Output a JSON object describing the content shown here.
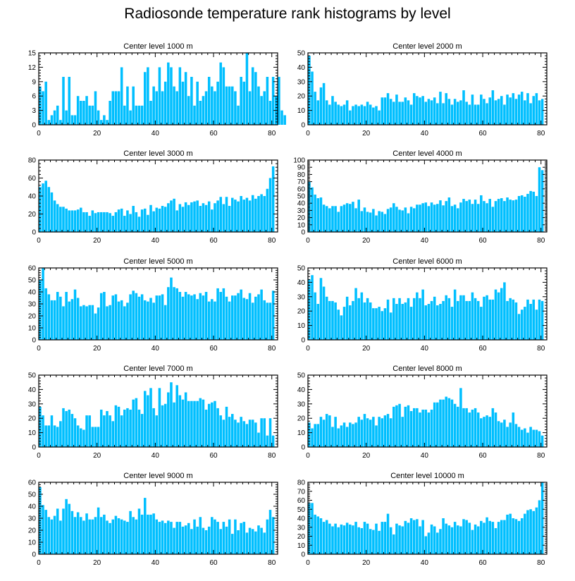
{
  "title": "Radiosonde temperature rank histograms by level",
  "colors": {
    "bar": "#00BFFF",
    "bar_stroke": "#ffffff",
    "axis": "#000000"
  },
  "chart_data": [
    {
      "type": "bar",
      "title": "Center level 1000 m",
      "xlim": [
        0,
        82
      ],
      "ylim": [
        0,
        15
      ],
      "xticks": [
        0,
        20,
        40,
        60,
        80
      ],
      "yticks": [
        0,
        3,
        6,
        9,
        12,
        15
      ],
      "values": [
        8,
        7,
        9,
        1,
        2,
        3,
        4,
        1,
        10,
        3,
        10,
        2,
        2,
        6,
        5,
        5,
        6,
        4,
        4,
        7,
        3,
        1,
        2,
        1,
        5,
        7,
        7,
        7,
        12,
        4,
        8,
        3,
        8,
        4,
        4,
        4,
        11,
        12,
        5,
        8,
        7,
        12,
        7,
        9,
        13,
        12,
        8,
        7,
        12,
        9,
        11,
        6,
        10,
        4,
        9,
        5,
        6,
        7,
        10,
        8,
        7,
        9,
        13,
        12,
        8,
        8,
        8,
        7,
        4,
        10,
        9,
        15,
        7,
        12,
        11,
        8,
        6,
        7,
        10,
        5,
        10,
        6,
        10,
        3,
        2
      ],
      "xlabel": "",
      "ylabel": ""
    },
    {
      "type": "bar",
      "title": "Center level 2000 m",
      "xlim": [
        0,
        82
      ],
      "ylim": [
        0,
        50
      ],
      "xticks": [
        0,
        20,
        40,
        60,
        80
      ],
      "yticks": [
        0,
        10,
        20,
        30,
        40,
        50
      ],
      "values": [
        48,
        37,
        23,
        17,
        26,
        29,
        17,
        14,
        20,
        16,
        14,
        13,
        14,
        17,
        10,
        13,
        14,
        13,
        14,
        13,
        16,
        14,
        12,
        13,
        10,
        19,
        19,
        22,
        18,
        16,
        21,
        16,
        16,
        19,
        17,
        14,
        22,
        20,
        19,
        20,
        16,
        18,
        17,
        19,
        15,
        23,
        15,
        22,
        18,
        14,
        18,
        16,
        17,
        24,
        16,
        14,
        21,
        14,
        14,
        21,
        18,
        15,
        19,
        24,
        17,
        18,
        20,
        14,
        21,
        19,
        22,
        18,
        21,
        23,
        17,
        22,
        15,
        20,
        22,
        17,
        18
      ],
      "xlabel": "",
      "ylabel": ""
    },
    {
      "type": "bar",
      "title": "Center level 3000 m",
      "xlim": [
        0,
        82
      ],
      "ylim": [
        0,
        80
      ],
      "xticks": [
        0,
        20,
        40,
        60,
        80
      ],
      "yticks": [
        0,
        20,
        40,
        60,
        80
      ],
      "values": [
        50,
        54,
        57,
        50,
        44,
        35,
        31,
        28,
        28,
        26,
        24,
        24,
        24,
        25,
        27,
        22,
        22,
        18,
        24,
        21,
        22,
        22,
        22,
        22,
        21,
        18,
        22,
        25,
        26,
        18,
        24,
        20,
        29,
        22,
        17,
        25,
        26,
        19,
        30,
        23,
        27,
        26,
        29,
        28,
        32,
        35,
        37,
        24,
        31,
        28,
        33,
        30,
        33,
        34,
        35,
        29,
        32,
        30,
        34,
        25,
        32,
        35,
        39,
        31,
        39,
        29,
        38,
        36,
        34,
        40,
        36,
        38,
        35,
        41,
        37,
        40,
        42,
        40,
        48,
        60,
        73
      ],
      "xlabel": "",
      "ylabel": ""
    },
    {
      "type": "bar",
      "title": "Center level 4000 m",
      "xlim": [
        0,
        82
      ],
      "ylim": [
        0,
        100
      ],
      "xticks": [
        0,
        20,
        40,
        60,
        80
      ],
      "yticks": [
        0,
        10,
        20,
        30,
        40,
        50,
        60,
        70,
        80,
        90,
        100
      ],
      "values": [
        70,
        62,
        52,
        47,
        48,
        38,
        36,
        33,
        36,
        36,
        28,
        36,
        38,
        40,
        39,
        42,
        33,
        45,
        29,
        34,
        28,
        27,
        32,
        23,
        29,
        28,
        25,
        32,
        34,
        40,
        35,
        31,
        30,
        34,
        26,
        35,
        33,
        38,
        38,
        40,
        41,
        36,
        41,
        38,
        39,
        44,
        37,
        43,
        48,
        36,
        38,
        33,
        41,
        46,
        43,
        45,
        39,
        45,
        39,
        51,
        43,
        40,
        46,
        35,
        43,
        46,
        47,
        43,
        48,
        45,
        44,
        45,
        50,
        51,
        49,
        53,
        57,
        56,
        50,
        90,
        86
      ],
      "xlabel": "",
      "ylabel": ""
    },
    {
      "type": "bar",
      "title": "Center level 5000 m",
      "xlim": [
        0,
        82
      ],
      "ylim": [
        0,
        60
      ],
      "xticks": [
        0,
        20,
        40,
        60,
        80
      ],
      "yticks": [
        0,
        10,
        20,
        30,
        40,
        50,
        60
      ],
      "values": [
        50,
        60,
        43,
        38,
        33,
        33,
        40,
        36,
        28,
        40,
        32,
        34,
        42,
        35,
        28,
        29,
        28,
        29,
        29,
        22,
        27,
        39,
        40,
        28,
        29,
        37,
        38,
        32,
        33,
        28,
        31,
        38,
        41,
        39,
        36,
        38,
        33,
        32,
        35,
        31,
        37,
        37,
        38,
        29,
        44,
        52,
        44,
        43,
        40,
        36,
        40,
        38,
        37,
        38,
        34,
        39,
        37,
        40,
        32,
        34,
        32,
        43,
        40,
        43,
        36,
        32,
        37,
        37,
        39,
        42,
        35,
        34,
        39,
        31,
        36,
        38,
        42,
        33,
        31,
        31,
        41
      ],
      "xlabel": "",
      "ylabel": ""
    },
    {
      "type": "bar",
      "title": "Center level 6000 m",
      "xlim": [
        0,
        82
      ],
      "ylim": [
        0,
        50
      ],
      "xticks": [
        0,
        20,
        40,
        60,
        80
      ],
      "yticks": [
        0,
        10,
        20,
        30,
        40,
        50
      ],
      "values": [
        42,
        45,
        33,
        25,
        43,
        37,
        30,
        27,
        27,
        26,
        21,
        17,
        23,
        30,
        24,
        27,
        36,
        29,
        33,
        26,
        29,
        26,
        22,
        22,
        23,
        20,
        22,
        28,
        19,
        29,
        25,
        29,
        25,
        26,
        29,
        23,
        29,
        33,
        29,
        35,
        24,
        25,
        27,
        30,
        24,
        25,
        27,
        31,
        29,
        23,
        35,
        27,
        31,
        31,
        27,
        27,
        33,
        29,
        27,
        23,
        30,
        31,
        28,
        28,
        35,
        33,
        36,
        40,
        27,
        29,
        28,
        26,
        18,
        21,
        23,
        28,
        25,
        28,
        21,
        28,
        27
      ],
      "xlabel": "",
      "ylabel": ""
    },
    {
      "type": "bar",
      "title": "Center level 7000 m",
      "xlim": [
        0,
        82
      ],
      "ylim": [
        0,
        50
      ],
      "xticks": [
        0,
        20,
        40,
        60,
        80
      ],
      "yticks": [
        0,
        10,
        20,
        30,
        40,
        50
      ],
      "values": [
        28,
        22,
        15,
        15,
        22,
        15,
        14,
        18,
        27,
        25,
        26,
        23,
        20,
        15,
        13,
        12,
        22,
        22,
        14,
        14,
        14,
        26,
        22,
        25,
        22,
        18,
        29,
        28,
        22,
        26,
        27,
        26,
        33,
        34,
        26,
        23,
        39,
        36,
        41,
        27,
        22,
        41,
        29,
        30,
        38,
        45,
        31,
        43,
        36,
        33,
        38,
        32,
        32,
        32,
        32,
        34,
        33,
        26,
        30,
        31,
        32,
        27,
        22,
        19,
        28,
        21,
        23,
        19,
        17,
        21,
        18,
        16,
        19,
        19,
        17,
        10,
        20,
        20,
        8,
        20,
        8
      ],
      "xlabel": "",
      "ylabel": ""
    },
    {
      "type": "bar",
      "title": "Center level 8000 m",
      "xlim": [
        0,
        82
      ],
      "ylim": [
        0,
        50
      ],
      "xticks": [
        0,
        20,
        40,
        60,
        80
      ],
      "yticks": [
        0,
        10,
        20,
        30,
        40,
        50
      ],
      "values": [
        17,
        13,
        16,
        16,
        21,
        19,
        23,
        22,
        14,
        21,
        13,
        15,
        17,
        14,
        17,
        16,
        17,
        21,
        19,
        23,
        20,
        19,
        21,
        15,
        21,
        20,
        22,
        23,
        20,
        28,
        29,
        30,
        21,
        28,
        29,
        25,
        27,
        27,
        24,
        26,
        26,
        24,
        26,
        31,
        31,
        33,
        33,
        35,
        34,
        33,
        30,
        28,
        41,
        27,
        27,
        24,
        26,
        27,
        24,
        20,
        21,
        22,
        21,
        27,
        24,
        18,
        17,
        19,
        14,
        17,
        24,
        16,
        14,
        12,
        13,
        10,
        14,
        12,
        12,
        11,
        8
      ],
      "xlabel": "",
      "ylabel": ""
    },
    {
      "type": "bar",
      "title": "Center level 9000 m",
      "xlim": [
        0,
        82
      ],
      "ylim": [
        0,
        60
      ],
      "xticks": [
        0,
        20,
        40,
        60,
        80
      ],
      "yticks": [
        0,
        10,
        20,
        30,
        40,
        50,
        60
      ],
      "values": [
        56,
        41,
        37,
        31,
        29,
        32,
        38,
        28,
        38,
        46,
        42,
        36,
        31,
        35,
        31,
        28,
        34,
        29,
        29,
        31,
        39,
        31,
        33,
        28,
        26,
        29,
        32,
        30,
        29,
        28,
        27,
        36,
        31,
        29,
        38,
        33,
        47,
        33,
        33,
        34,
        29,
        27,
        28,
        26,
        28,
        27,
        22,
        27,
        27,
        23,
        24,
        26,
        21,
        29,
        23,
        31,
        22,
        20,
        23,
        31,
        29,
        27,
        21,
        27,
        23,
        29,
        17,
        29,
        20,
        26,
        27,
        18,
        22,
        21,
        19,
        24,
        22,
        18,
        29,
        37,
        31
      ],
      "xlabel": "",
      "ylabel": ""
    },
    {
      "type": "bar",
      "title": "Center level 10000 m",
      "xlim": [
        0,
        82
      ],
      "ylim": [
        0,
        80
      ],
      "xticks": [
        0,
        20,
        40,
        60,
        80
      ],
      "yticks": [
        0,
        10,
        20,
        30,
        40,
        50,
        60,
        70,
        80
      ],
      "values": [
        57,
        57,
        44,
        42,
        40,
        36,
        38,
        34,
        31,
        34,
        30,
        33,
        32,
        35,
        33,
        32,
        36,
        30,
        29,
        36,
        34,
        28,
        27,
        34,
        26,
        36,
        36,
        45,
        30,
        22,
        34,
        32,
        31,
        37,
        35,
        40,
        38,
        39,
        31,
        38,
        20,
        24,
        33,
        31,
        24,
        28,
        40,
        34,
        32,
        30,
        36,
        32,
        31,
        39,
        38,
        35,
        27,
        33,
        31,
        37,
        35,
        41,
        37,
        36,
        29,
        36,
        38,
        38,
        44,
        45,
        40,
        39,
        37,
        40,
        45,
        49,
        50,
        48,
        52,
        60,
        80
      ],
      "xlabel": "",
      "ylabel": ""
    }
  ]
}
